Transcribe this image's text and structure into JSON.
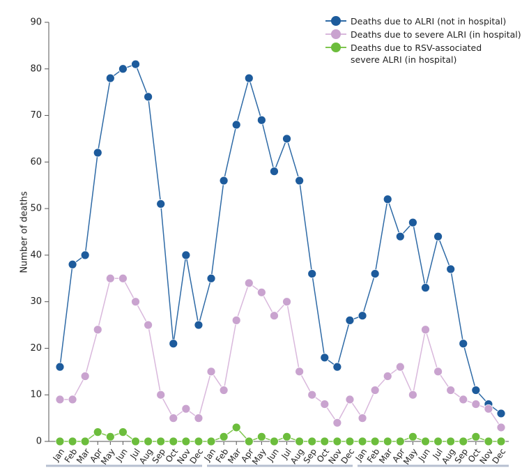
{
  "chart_data": {
    "type": "line",
    "y_label": "Number of deaths",
    "categories": [
      "Jan",
      "Feb",
      "Mar",
      "Apr",
      "May",
      "Jun",
      "Jul",
      "Aug",
      "Sep",
      "Oct",
      "Nov",
      "Dec",
      "Jan",
      "Feb",
      "Mar",
      "Apr",
      "May",
      "Jun",
      "Jul",
      "Aug",
      "Sep",
      "Oct",
      "Nov",
      "Dec",
      "Jan",
      "Feb",
      "Mar",
      "Apr",
      "May",
      "Jun",
      "Jul",
      "Aug",
      "Sep",
      "Oct",
      "Nov",
      "Dec"
    ],
    "series": [
      {
        "name": "Deaths due to ALRI (not in hospital)",
        "color": "#1d5b9c",
        "line_color": "#2e6aa6",
        "values": [
          16,
          38,
          40,
          62,
          78,
          80,
          81,
          74,
          51,
          21,
          40,
          25,
          35,
          56,
          68,
          78,
          69,
          58,
          65,
          56,
          36,
          18,
          16,
          26,
          27,
          36,
          52,
          44,
          47,
          33,
          44,
          37,
          21,
          11,
          8,
          6
        ]
      },
      {
        "name": "Deaths due to severe ALRI (in hospital)",
        "color": "#c9a3cf",
        "line_color": "#d9b8dc",
        "values": [
          9,
          9,
          14,
          24,
          35,
          35,
          30,
          25,
          10,
          5,
          7,
          5,
          15,
          11,
          26,
          34,
          32,
          27,
          30,
          15,
          10,
          8,
          4,
          9,
          5,
          11,
          14,
          16,
          10,
          24,
          15,
          11,
          9,
          8,
          7,
          3
        ]
      },
      {
        "name": "Deaths due to RSV-associated\nsevere ALRI (in hospital)",
        "color": "#6cbd3c",
        "line_color": "#7fc64f",
        "values": [
          0,
          0,
          0,
          2,
          1,
          2,
          0,
          0,
          0,
          0,
          0,
          0,
          0,
          1,
          3,
          0,
          1,
          0,
          1,
          0,
          0,
          0,
          0,
          0,
          0,
          0,
          0,
          0,
          1,
          0,
          0,
          0,
          0,
          1,
          0,
          0
        ]
      }
    ],
    "ylim": [
      0,
      90
    ],
    "yticks": [
      0,
      10,
      20,
      30,
      40,
      50,
      60,
      70,
      80,
      90
    ]
  }
}
